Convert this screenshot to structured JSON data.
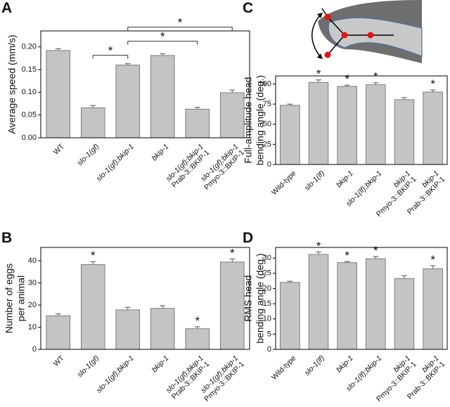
{
  "chart_data": [
    {
      "panel": "A",
      "type": "bar",
      "ylabel": [
        "Average speed (mm/s)"
      ],
      "categories": [
        [
          "WT"
        ],
        [
          "slo-1(gf)"
        ],
        [
          "slo-1(gf);bkip-1"
        ],
        [
          "bkip-1"
        ],
        [
          "slo-1(gf);bkip-1",
          "Prab-3::BKIP-1"
        ],
        [
          "slo-1(gf);bkip-1",
          "Pmyo-3::BKIP-1"
        ]
      ],
      "values": [
        0.192,
        0.066,
        0.16,
        0.181,
        0.063,
        0.099
      ],
      "errors": [
        0.004,
        0.005,
        0.003,
        0.004,
        0.004,
        0.006
      ],
      "ylim": [
        0,
        0.235
      ],
      "yticks": [
        {
          "value": 0,
          "label": "0.00"
        },
        {
          "value": 0.05,
          "label": "0.05"
        },
        {
          "value": 0.1,
          "label": "0.10"
        },
        {
          "value": 0.15,
          "label": "0.15"
        },
        {
          "value": 0.2,
          "label": "0.20"
        }
      ],
      "color": "#c4c4c4",
      "significance": [
        {
          "label": "*",
          "categories": [
            1,
            2
          ]
        },
        {
          "label": "*",
          "categories": [
            2,
            4
          ]
        },
        {
          "label": "*",
          "categories": [
            2,
            5
          ]
        }
      ]
    },
    {
      "panel": "B",
      "type": "bar",
      "ylabel": [
        "Number of eggs",
        "per animal"
      ],
      "categories": [
        [
          "WT"
        ],
        [
          "slo-1(gf)"
        ],
        [
          "slo-1(gf);bkip-1"
        ],
        [
          "bkip-1"
        ],
        [
          "slo-1(gf);bkip-1",
          "Prab-3::BKIP-1"
        ],
        [
          "slo-1(gf);bkip-1",
          "Pmyo-3::BKIP-1"
        ]
      ],
      "values": [
        15.2,
        38.3,
        17.8,
        18.5,
        9.3,
        39.4
      ],
      "errors": [
        0.9,
        1.3,
        1.2,
        1.2,
        0.9,
        1.4
      ],
      "ylim": [
        0,
        46
      ],
      "yticks": [
        0,
        10,
        20,
        30,
        40
      ],
      "color": "#c4c4c4",
      "significance": [
        {
          "label": "*",
          "categories": [
            1
          ]
        },
        {
          "label": "*",
          "categories": [
            4
          ]
        },
        {
          "label": "*",
          "categories": [
            5
          ]
        }
      ]
    },
    {
      "panel": "C",
      "type": "bar",
      "ylabel": [
        "Full-amplitude head",
        "bending angle (deg.)"
      ],
      "categories": [
        [
          "Wild-type"
        ],
        [
          "slo-1(lf)"
        ],
        [
          "bkip-1"
        ],
        [
          "slo-1(lf);bkip-1"
        ],
        [
          "bkip-1",
          "Pmyo-3::BKIP-1"
        ],
        [
          "bkip-1",
          "Prab-3::BKIP-1"
        ]
      ],
      "values": [
        73.5,
        102,
        97,
        99,
        80.5,
        90
      ],
      "errors": [
        1.5,
        3,
        1.5,
        2.5,
        2.5,
        2.5
      ],
      "ylim": [
        0,
        110
      ],
      "yticks": [
        0,
        25,
        50,
        75,
        100
      ],
      "color": "#c4c4c4",
      "significance": [
        {
          "label": "*",
          "categories": [
            1
          ]
        },
        {
          "label": "*",
          "categories": [
            2
          ]
        },
        {
          "label": "*",
          "categories": [
            3
          ]
        },
        {
          "label": "*",
          "categories": [
            5
          ]
        }
      ]
    },
    {
      "panel": "D",
      "type": "bar",
      "ylabel": [
        "RMS head",
        "bending angle (deg.)"
      ],
      "categories": [
        [
          "Wild-type"
        ],
        [
          "slo-1(lf)"
        ],
        [
          "bkip-1"
        ],
        [
          "slo-1(lf);bkip-1"
        ],
        [
          "bkip-1",
          "Pmyo-3::BKIP-1"
        ],
        [
          "bkip-1",
          "Prab-3::BKIP-1"
        ]
      ],
      "values": [
        22,
        31.2,
        28.5,
        29.8,
        23.3,
        26.5
      ],
      "errors": [
        0.4,
        0.8,
        0.4,
        0.7,
        0.9,
        1.0
      ],
      "ylim": [
        0,
        33.5
      ],
      "yticks": [
        0,
        5,
        10,
        15,
        20,
        25,
        30
      ],
      "color": "#c4c4c4",
      "significance": [
        {
          "label": "*",
          "categories": [
            1
          ]
        },
        {
          "label": "*",
          "categories": [
            2
          ]
        },
        {
          "label": "*",
          "categories": [
            3
          ]
        },
        {
          "label": "*",
          "categories": [
            5
          ]
        }
      ]
    }
  ]
}
